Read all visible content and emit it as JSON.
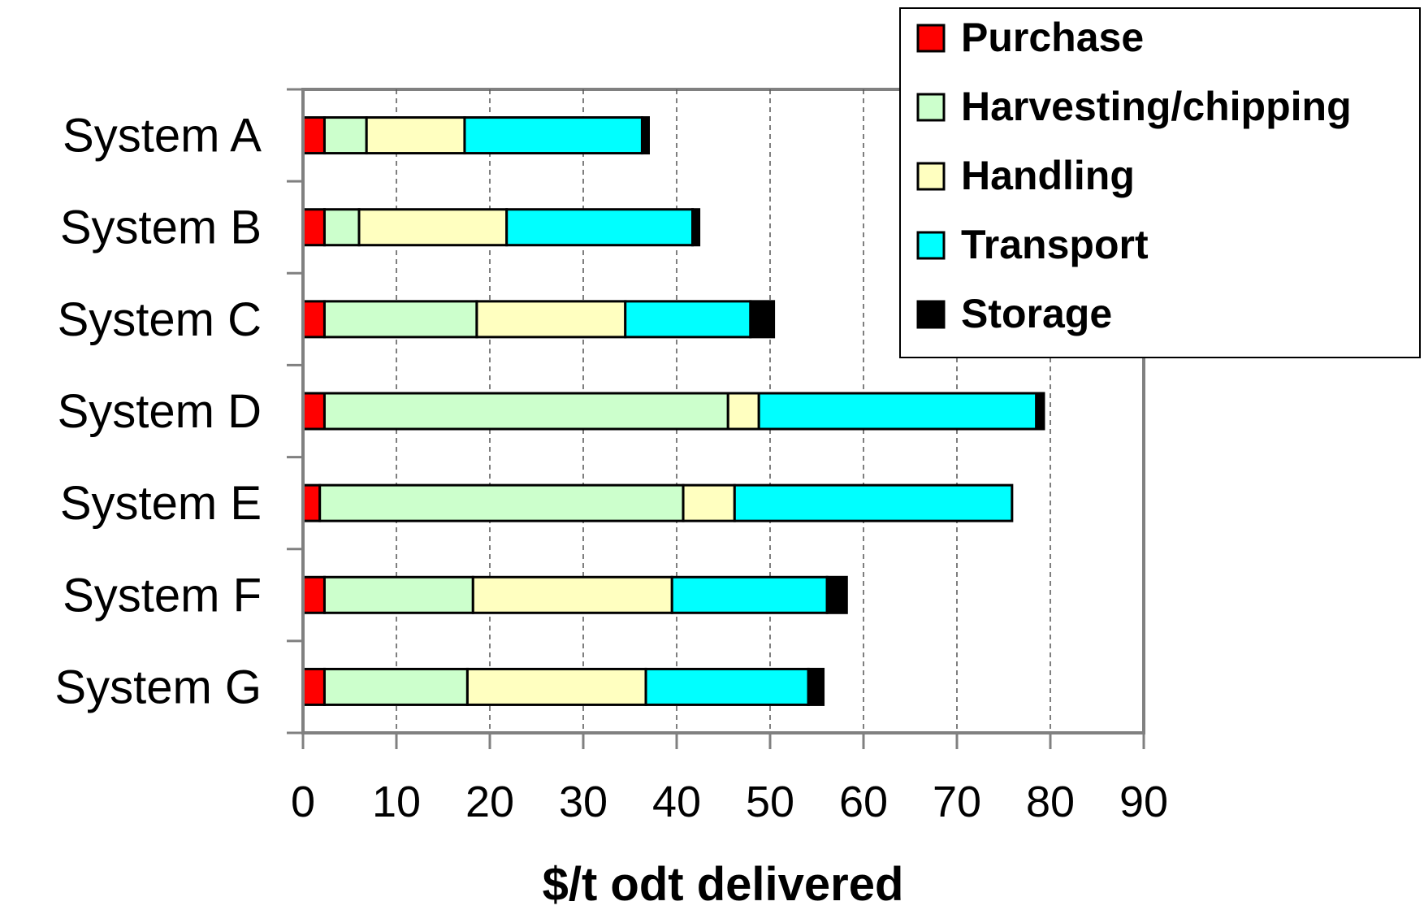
{
  "chart_data": {
    "type": "bar",
    "orientation": "horizontal",
    "stacked": true,
    "categories": [
      "System A",
      "System B",
      "System C",
      "System D",
      "System E",
      "System F",
      "System G"
    ],
    "series": [
      {
        "name": "Purchase",
        "color": "#ff0000",
        "values": [
          2.3,
          2.3,
          2.3,
          2.3,
          1.8,
          2.3,
          2.3
        ]
      },
      {
        "name": "Harvesting/chipping",
        "color": "#ccffcc",
        "values": [
          4.5,
          3.7,
          16.3,
          43.2,
          38.9,
          15.9,
          15.3
        ]
      },
      {
        "name": "Handling",
        "color": "#ffffc0",
        "values": [
          10.5,
          15.8,
          15.9,
          3.3,
          5.5,
          21.3,
          19.1
        ]
      },
      {
        "name": "Transport",
        "color": "#00ffff",
        "values": [
          19.0,
          19.9,
          13.4,
          29.7,
          29.7,
          16.6,
          17.4
        ]
      },
      {
        "name": "Storage",
        "color": "#000000",
        "values": [
          0.7,
          0.7,
          2.5,
          0.8,
          0.0,
          2.1,
          1.6
        ]
      }
    ],
    "xlim": [
      0,
      90
    ],
    "xticks": [
      "0",
      "10",
      "20",
      "30",
      "40",
      "50",
      "60",
      "70",
      "80",
      "90"
    ],
    "xlabel": "$/t odt delivered",
    "ylabel": "",
    "grid": "vertical dashed",
    "legend_position": "top-right"
  }
}
